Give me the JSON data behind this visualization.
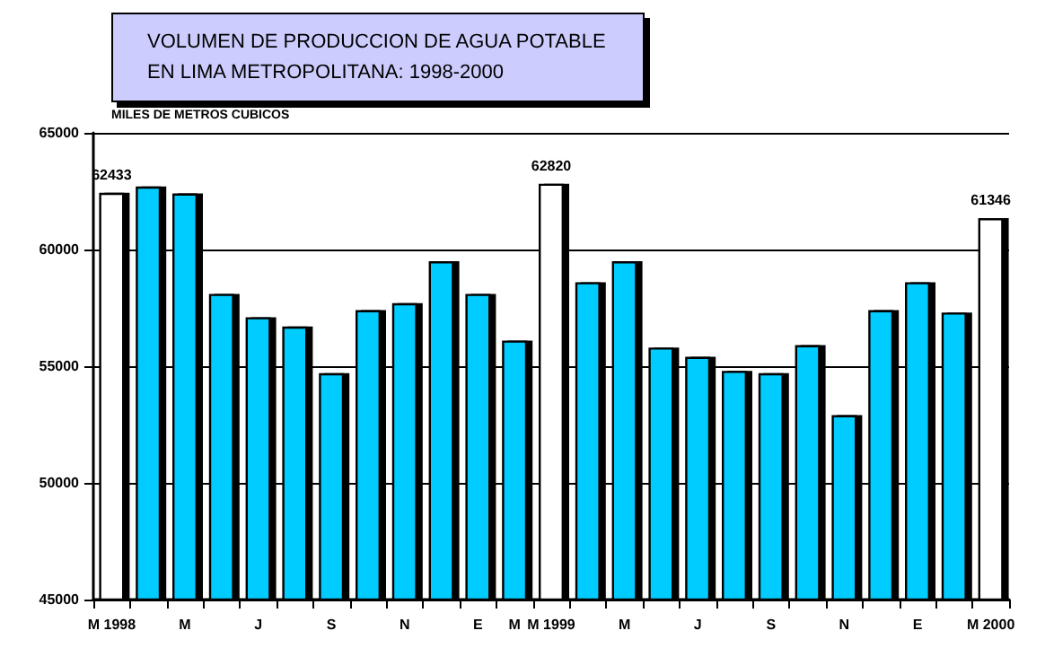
{
  "chart_data": {
    "type": "bar",
    "title": "VOLUMEN DE PRODUCCION DE AGUA POTABLE\nEN LIMA METROPOLITANA: 1998-2000",
    "ylabel": "MILES DE METROS CUBICOS",
    "categories": [
      "M 1998",
      null,
      "M",
      null,
      "J",
      null,
      "S",
      null,
      "N",
      null,
      "E",
      "M",
      "M 1999",
      null,
      "M",
      null,
      "J",
      null,
      "S",
      null,
      "N",
      null,
      "E",
      null,
      "M 2000"
    ],
    "values": [
      62433,
      62700,
      62400,
      58100,
      57100,
      56700,
      54700,
      57400,
      57700,
      59500,
      58100,
      56100,
      62820,
      58600,
      59500,
      55800,
      55400,
      54800,
      54700,
      55900,
      52900,
      57400,
      58600,
      57300,
      61346
    ],
    "colors": [
      "#ffffff",
      "#00ccff",
      "#00ccff",
      "#00ccff",
      "#00ccff",
      "#00ccff",
      "#00ccff",
      "#00ccff",
      "#00ccff",
      "#00ccff",
      "#00ccff",
      "#00ccff",
      "#ffffff",
      "#00ccff",
      "#00ccff",
      "#00ccff",
      "#00ccff",
      "#00ccff",
      "#00ccff",
      "#00ccff",
      "#00ccff",
      "#00ccff",
      "#00ccff",
      "#00ccff",
      "#ffffff"
    ],
    "value_labels": [
      "62433",
      null,
      null,
      null,
      null,
      null,
      null,
      null,
      null,
      null,
      null,
      null,
      "62820",
      null,
      null,
      null,
      null,
      null,
      null,
      null,
      null,
      null,
      null,
      null,
      "61346"
    ],
    "ylim": [
      45000,
      65000
    ],
    "yticks": [
      45000,
      50000,
      55000,
      60000,
      65000
    ],
    "grid": "y"
  }
}
